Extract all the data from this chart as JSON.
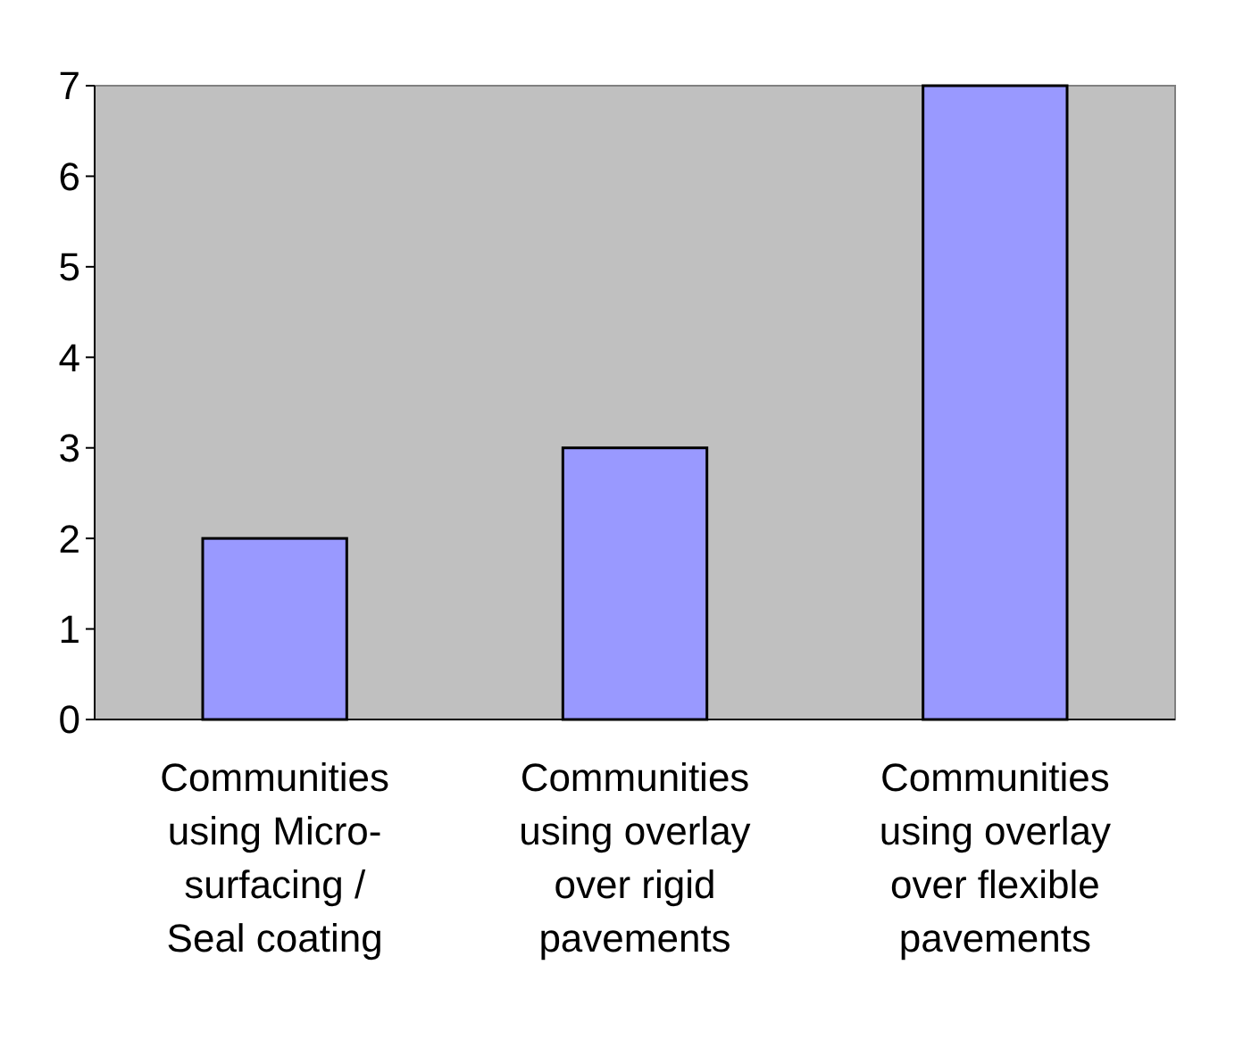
{
  "chart_data": {
    "type": "bar",
    "categories": [
      "Communities using Micro-surfacing / Seal coating",
      "Communities using overlay over rigid pavements",
      "Communities using overlay over flexible pavements"
    ],
    "values": [
      2,
      3,
      7
    ],
    "color": "#9999ff",
    "ylim": [
      0,
      7
    ],
    "yticks": [
      0,
      1,
      2,
      3,
      4,
      5,
      6,
      7
    ],
    "grid": false
  }
}
